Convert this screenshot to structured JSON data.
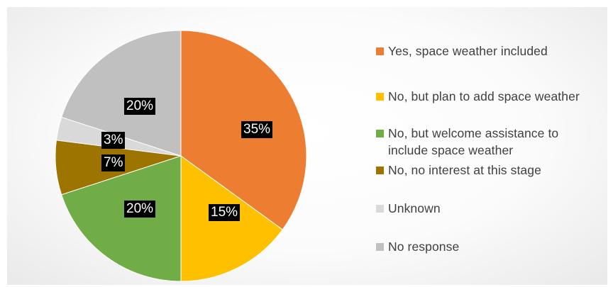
{
  "chart_data": {
    "type": "pie",
    "slices": [
      {
        "label": "Yes, space weather included",
        "value": 35,
        "data_label": "35%",
        "color": "#ED7D31"
      },
      {
        "label": "No, but plan to add space weather",
        "value": 15,
        "data_label": "15%",
        "color": "#FFC000"
      },
      {
        "label": "No, but welcome assistance to include space weather",
        "value": 20,
        "data_label": "20%",
        "color": "#70AD47"
      },
      {
        "label": "No, no interest at this stage",
        "value": 7,
        "data_label": "7%",
        "color": "#9E7400"
      },
      {
        "label": "Unknown",
        "value": 3,
        "data_label": "3%",
        "color": "#D9D9D9"
      },
      {
        "label": "No response",
        "value": 20,
        "data_label": "20%",
        "color": "#C0C0C0"
      }
    ],
    "legend_position": "right",
    "start_angle": "12 o'clock",
    "direction": "clockwise"
  }
}
